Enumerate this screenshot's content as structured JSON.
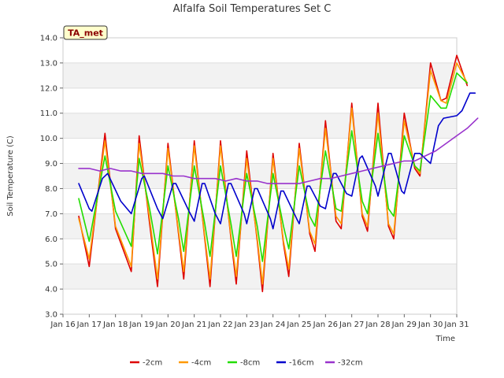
{
  "chart_data": {
    "type": "line",
    "title": "Alfalfa Soil Temperatures Set C",
    "xlabel": "Time",
    "ylabel": "Soil Temperature (C)",
    "badge": "TA_met",
    "ylim": [
      3.0,
      14.0
    ],
    "xlim": [
      0,
      15
    ],
    "yticks": [
      3.0,
      4.0,
      5.0,
      6.0,
      7.0,
      8.0,
      9.0,
      10.0,
      11.0,
      12.0,
      13.0,
      14.0
    ],
    "ytick_labels": [
      "3.0",
      "4.0",
      "5.0",
      "6.0",
      "7.0",
      "8.0",
      "9.0",
      "10.0",
      "11.0",
      "12.0",
      "13.0",
      "14.0"
    ],
    "xticks": [
      0,
      1,
      2,
      3,
      4,
      5,
      6,
      7,
      8,
      9,
      10,
      11,
      12,
      13,
      14,
      15
    ],
    "xtick_labels": [
      "Jan 16",
      "Jan 17",
      "Jan 18",
      "Jan 19",
      "Jan 20",
      "Jan 21",
      "Jan 22",
      "Jan 23",
      "Jan 24",
      "Jan 25",
      "Jan 26",
      "Jan 27",
      "Jan 28",
      "Jan 29",
      "Jan 30",
      "Jan 31"
    ],
    "grid": "horizontal bands",
    "legend_position": "bottom",
    "colors": {
      "-2cm": "#dd0000",
      "-4cm": "#ff9900",
      "-8cm": "#22dd00",
      "-16cm": "#0000cc",
      "-32cm": "#9933cc"
    },
    "series": [
      {
        "name": "-2cm",
        "points": [
          [
            0.6,
            6.9
          ],
          [
            1.0,
            4.9
          ],
          [
            1.6,
            10.2
          ],
          [
            2.0,
            6.4
          ],
          [
            2.6,
            4.7
          ],
          [
            2.9,
            10.1
          ],
          [
            3.3,
            6.6
          ],
          [
            3.6,
            4.1
          ],
          [
            4.0,
            9.8
          ],
          [
            4.4,
            6.2
          ],
          [
            4.6,
            4.4
          ],
          [
            5.0,
            9.9
          ],
          [
            5.4,
            6.0
          ],
          [
            5.6,
            4.1
          ],
          [
            6.0,
            9.9
          ],
          [
            6.4,
            6.0
          ],
          [
            6.6,
            4.2
          ],
          [
            7.0,
            9.5
          ],
          [
            7.4,
            5.9
          ],
          [
            7.6,
            3.9
          ],
          [
            8.0,
            9.4
          ],
          [
            8.4,
            5.8
          ],
          [
            8.6,
            4.5
          ],
          [
            9.0,
            9.8
          ],
          [
            9.4,
            6.2
          ],
          [
            9.6,
            5.5
          ],
          [
            10.0,
            10.7
          ],
          [
            10.4,
            6.7
          ],
          [
            10.6,
            6.4
          ],
          [
            11.0,
            11.4
          ],
          [
            11.4,
            6.9
          ],
          [
            11.6,
            6.3
          ],
          [
            12.0,
            11.4
          ],
          [
            12.4,
            6.5
          ],
          [
            12.6,
            6.0
          ],
          [
            13.0,
            11.0
          ],
          [
            13.4,
            8.8
          ],
          [
            13.6,
            8.5
          ],
          [
            14.0,
            13.0
          ],
          [
            14.4,
            11.5
          ],
          [
            14.6,
            11.6
          ],
          [
            15.0,
            13.3
          ],
          [
            15.4,
            12.1
          ]
        ]
      },
      {
        "name": "-4cm",
        "points": [
          [
            0.6,
            6.8
          ],
          [
            1.0,
            5.2
          ],
          [
            1.6,
            9.9
          ],
          [
            2.0,
            6.5
          ],
          [
            2.6,
            4.9
          ],
          [
            2.9,
            9.8
          ],
          [
            3.3,
            6.8
          ],
          [
            3.6,
            4.4
          ],
          [
            4.0,
            9.6
          ],
          [
            4.4,
            6.3
          ],
          [
            4.6,
            4.7
          ],
          [
            5.0,
            9.7
          ],
          [
            5.4,
            6.1
          ],
          [
            5.6,
            4.4
          ],
          [
            6.0,
            9.7
          ],
          [
            6.4,
            6.1
          ],
          [
            6.6,
            4.5
          ],
          [
            7.0,
            9.2
          ],
          [
            7.4,
            6.0
          ],
          [
            7.6,
            4.2
          ],
          [
            8.0,
            9.2
          ],
          [
            8.4,
            5.9
          ],
          [
            8.6,
            4.8
          ],
          [
            9.0,
            9.6
          ],
          [
            9.4,
            6.3
          ],
          [
            9.6,
            5.8
          ],
          [
            10.0,
            10.4
          ],
          [
            10.4,
            6.9
          ],
          [
            10.6,
            6.6
          ],
          [
            11.0,
            11.2
          ],
          [
            11.4,
            7.0
          ],
          [
            11.6,
            6.5
          ],
          [
            12.0,
            11.0
          ],
          [
            12.4,
            6.6
          ],
          [
            12.6,
            6.2
          ],
          [
            13.0,
            10.7
          ],
          [
            13.4,
            8.9
          ],
          [
            13.6,
            8.6
          ],
          [
            14.0,
            12.7
          ],
          [
            14.4,
            11.5
          ],
          [
            14.6,
            11.4
          ],
          [
            15.0,
            13.0
          ],
          [
            15.4,
            12.2
          ]
        ]
      },
      {
        "name": "-8cm",
        "points": [
          [
            0.6,
            7.6
          ],
          [
            1.0,
            5.9
          ],
          [
            1.6,
            9.3
          ],
          [
            2.0,
            7.1
          ],
          [
            2.6,
            5.7
          ],
          [
            2.9,
            9.2
          ],
          [
            3.3,
            7.2
          ],
          [
            3.6,
            5.4
          ],
          [
            4.0,
            8.9
          ],
          [
            4.4,
            6.8
          ],
          [
            4.6,
            5.5
          ],
          [
            5.0,
            8.9
          ],
          [
            5.4,
            6.6
          ],
          [
            5.6,
            5.3
          ],
          [
            6.0,
            8.9
          ],
          [
            6.4,
            6.6
          ],
          [
            6.6,
            5.3
          ],
          [
            7.0,
            8.6
          ],
          [
            7.4,
            6.5
          ],
          [
            7.6,
            5.1
          ],
          [
            8.0,
            8.6
          ],
          [
            8.4,
            6.5
          ],
          [
            8.6,
            5.6
          ],
          [
            9.0,
            8.9
          ],
          [
            9.4,
            6.9
          ],
          [
            9.6,
            6.5
          ],
          [
            10.0,
            9.5
          ],
          [
            10.4,
            7.2
          ],
          [
            10.6,
            7.1
          ],
          [
            11.0,
            10.3
          ],
          [
            11.4,
            7.5
          ],
          [
            11.6,
            7.0
          ],
          [
            12.0,
            10.2
          ],
          [
            12.4,
            7.2
          ],
          [
            12.6,
            6.9
          ],
          [
            13.0,
            10.1
          ],
          [
            13.4,
            8.9
          ],
          [
            13.6,
            8.7
          ],
          [
            14.0,
            11.7
          ],
          [
            14.4,
            11.2
          ],
          [
            14.6,
            11.2
          ],
          [
            15.0,
            12.6
          ],
          [
            15.4,
            12.2
          ]
        ]
      },
      {
        "name": "-16cm",
        "points": [
          [
            0.6,
            8.2
          ],
          [
            1.0,
            7.2
          ],
          [
            1.1,
            7.1
          ],
          [
            1.5,
            8.4
          ],
          [
            1.7,
            8.6
          ],
          [
            2.2,
            7.5
          ],
          [
            2.6,
            7.0
          ],
          [
            3.0,
            8.4
          ],
          [
            3.1,
            8.5
          ],
          [
            3.6,
            7.2
          ],
          [
            3.8,
            6.8
          ],
          [
            4.2,
            8.2
          ],
          [
            4.3,
            8.2
          ],
          [
            4.8,
            7.1
          ],
          [
            5.0,
            6.7
          ],
          [
            5.3,
            8.2
          ],
          [
            5.4,
            8.2
          ],
          [
            5.8,
            7.0
          ],
          [
            6.0,
            6.6
          ],
          [
            6.3,
            8.2
          ],
          [
            6.4,
            8.2
          ],
          [
            6.9,
            7.0
          ],
          [
            7.0,
            6.6
          ],
          [
            7.3,
            8.0
          ],
          [
            7.4,
            8.0
          ],
          [
            7.9,
            6.8
          ],
          [
            8.0,
            6.4
          ],
          [
            8.3,
            7.9
          ],
          [
            8.4,
            7.9
          ],
          [
            8.9,
            6.8
          ],
          [
            9.0,
            6.6
          ],
          [
            9.3,
            8.1
          ],
          [
            9.4,
            8.1
          ],
          [
            9.8,
            7.3
          ],
          [
            10.0,
            7.2
          ],
          [
            10.3,
            8.6
          ],
          [
            10.4,
            8.6
          ],
          [
            10.8,
            7.8
          ],
          [
            11.0,
            7.7
          ],
          [
            11.3,
            9.2
          ],
          [
            11.4,
            9.3
          ],
          [
            11.9,
            8.1
          ],
          [
            12.0,
            7.7
          ],
          [
            12.4,
            9.4
          ],
          [
            12.5,
            9.4
          ],
          [
            12.9,
            7.9
          ],
          [
            13.0,
            7.8
          ],
          [
            13.4,
            9.4
          ],
          [
            13.6,
            9.4
          ],
          [
            13.9,
            9.1
          ],
          [
            14.0,
            9.0
          ],
          [
            14.3,
            10.5
          ],
          [
            14.5,
            10.8
          ],
          [
            15.0,
            10.9
          ],
          [
            15.2,
            11.1
          ],
          [
            15.5,
            11.8
          ],
          [
            15.7,
            11.8
          ]
        ]
      },
      {
        "name": "-32cm",
        "points": [
          [
            0.6,
            8.8
          ],
          [
            1.0,
            8.8
          ],
          [
            1.4,
            8.7
          ],
          [
            1.8,
            8.8
          ],
          [
            2.2,
            8.7
          ],
          [
            2.6,
            8.7
          ],
          [
            3.0,
            8.6
          ],
          [
            3.4,
            8.6
          ],
          [
            3.8,
            8.6
          ],
          [
            4.2,
            8.5
          ],
          [
            4.6,
            8.5
          ],
          [
            5.0,
            8.4
          ],
          [
            5.4,
            8.4
          ],
          [
            5.8,
            8.4
          ],
          [
            6.2,
            8.3
          ],
          [
            6.6,
            8.4
          ],
          [
            7.0,
            8.3
          ],
          [
            7.4,
            8.3
          ],
          [
            7.8,
            8.2
          ],
          [
            8.2,
            8.2
          ],
          [
            8.6,
            8.2
          ],
          [
            9.0,
            8.2
          ],
          [
            9.4,
            8.3
          ],
          [
            9.8,
            8.4
          ],
          [
            10.2,
            8.4
          ],
          [
            10.6,
            8.5
          ],
          [
            11.0,
            8.6
          ],
          [
            11.4,
            8.7
          ],
          [
            11.8,
            8.8
          ],
          [
            12.2,
            8.9
          ],
          [
            12.6,
            9.0
          ],
          [
            13.0,
            9.1
          ],
          [
            13.4,
            9.1
          ],
          [
            13.8,
            9.3
          ],
          [
            14.2,
            9.5
          ],
          [
            14.6,
            9.8
          ],
          [
            15.0,
            10.1
          ],
          [
            15.4,
            10.4
          ],
          [
            15.8,
            10.8
          ]
        ]
      }
    ]
  }
}
